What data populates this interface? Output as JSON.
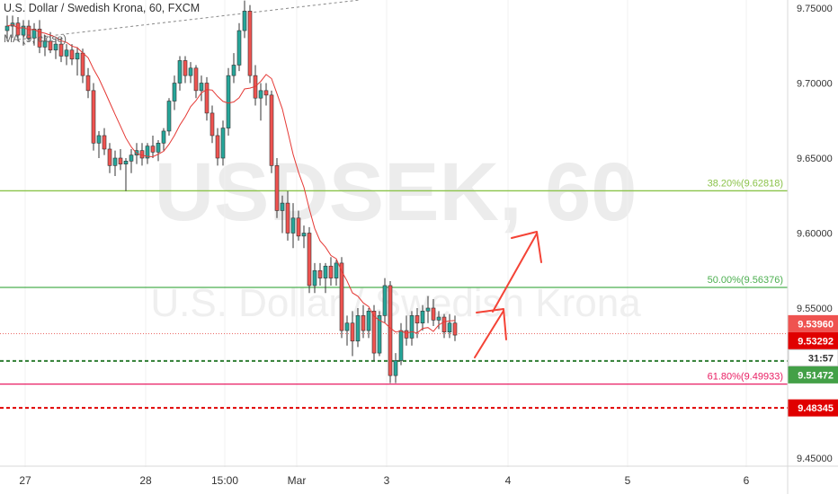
{
  "header": {
    "symbol_title": "U.S. Dollar / Swedish Krona, 60, FXCM",
    "indicator_label": "MA (9, close)"
  },
  "watermark": {
    "symbol": "USDSEK, 60",
    "description": "U.S. Dollar / Swedish Krona"
  },
  "colors": {
    "up_candle": "#26a69a",
    "down_candle": "#ef5350",
    "ma_line": "#e53935",
    "fib_38": "#8bc34a",
    "fib_50": "#4caf50",
    "fib_61": "#e91e63",
    "green_dash": "#2e7d32",
    "red_dash": "#e00000",
    "price_line": "#e53935",
    "arrow": "#f44336",
    "trendline": "#888888",
    "axis_text": "#333333"
  },
  "price_axis": {
    "labels": [
      "9.75000",
      "9.70000",
      "9.65000",
      "9.60000",
      "9.55000",
      "9.45000"
    ]
  },
  "time_axis": {
    "labels": [
      "27",
      "28",
      "15:00",
      "Mar",
      "3",
      "4",
      "5",
      "6"
    ]
  },
  "fib_levels": [
    {
      "label": "38.20%(9.62818)",
      "price": 9.62818,
      "color_key": "fib_38"
    },
    {
      "label": "50.00%(9.56376)",
      "price": 9.56376,
      "color_key": "fib_50"
    },
    {
      "label": "61.80%(9.49933)",
      "price": 9.49933,
      "color_key": "fib_61"
    }
  ],
  "price_badges": [
    {
      "text": "9.53960",
      "price": 9.5396,
      "bg": "#ef5350",
      "fg": "#ffffff"
    },
    {
      "text": "9.53292",
      "price": 9.53292,
      "bg": "#e00000",
      "fg": "#ffffff"
    },
    {
      "text": "31:57",
      "price": 9.5205,
      "bg": "#ffffff",
      "fg": "#333333"
    },
    {
      "text": "9.51472",
      "price": 9.51472,
      "bg": "#43a047",
      "fg": "#ffffff"
    },
    {
      "text": "9.48345",
      "price": 9.48345,
      "bg": "#e00000",
      "fg": "#ffffff"
    }
  ],
  "horizontal_lines": {
    "green_dashed": 9.51472,
    "red_dashed": 9.48345,
    "current_price": 9.53292
  },
  "chart_data": {
    "type": "candlestick",
    "symbol": "USDSEK",
    "timeframe": "60",
    "ylim": [
      9.445,
      9.755
    ],
    "ohlc": [
      [
        9.735,
        9.745,
        9.728,
        9.738
      ],
      [
        9.738,
        9.745,
        9.73,
        9.74
      ],
      [
        9.74,
        9.744,
        9.728,
        9.732
      ],
      [
        9.732,
        9.742,
        9.725,
        9.738
      ],
      [
        9.738,
        9.742,
        9.728,
        9.73
      ],
      [
        9.73,
        9.74,
        9.725,
        9.736
      ],
      [
        9.736,
        9.742,
        9.72,
        9.724
      ],
      [
        9.724,
        9.732,
        9.718,
        9.728
      ],
      [
        9.728,
        9.734,
        9.72,
        9.722
      ],
      [
        9.722,
        9.73,
        9.716,
        9.726
      ],
      [
        9.726,
        9.73,
        9.714,
        9.718
      ],
      [
        9.718,
        9.726,
        9.712,
        9.722
      ],
      [
        9.722,
        9.726,
        9.712,
        9.716
      ],
      [
        9.716,
        9.724,
        9.705,
        9.72
      ],
      [
        9.72,
        9.723,
        9.7,
        9.705
      ],
      [
        9.705,
        9.71,
        9.69,
        9.695
      ],
      [
        9.695,
        9.7,
        9.655,
        9.66
      ],
      [
        9.66,
        9.668,
        9.65,
        9.665
      ],
      [
        9.665,
        9.67,
        9.652,
        9.656
      ],
      [
        9.656,
        9.66,
        9.64,
        9.645
      ],
      [
        9.645,
        9.655,
        9.638,
        9.65
      ],
      [
        9.65,
        9.656,
        9.642,
        9.646
      ],
      [
        9.646,
        9.65,
        9.628,
        9.648
      ],
      [
        9.648,
        9.656,
        9.64,
        9.652
      ],
      [
        9.652,
        9.66,
        9.646,
        9.655
      ],
      [
        9.655,
        9.66,
        9.645,
        9.65
      ],
      [
        9.65,
        9.66,
        9.646,
        9.658
      ],
      [
        9.658,
        9.665,
        9.65,
        9.654
      ],
      [
        9.654,
        9.662,
        9.648,
        9.66
      ],
      [
        9.66,
        9.67,
        9.655,
        9.668
      ],
      [
        9.668,
        9.69,
        9.665,
        9.688
      ],
      [
        9.688,
        9.705,
        9.682,
        9.7
      ],
      [
        9.7,
        9.718,
        9.695,
        9.715
      ],
      [
        9.715,
        9.718,
        9.7,
        9.705
      ],
      [
        9.705,
        9.714,
        9.7,
        9.71
      ],
      [
        9.71,
        9.712,
        9.69,
        9.695
      ],
      [
        9.695,
        9.705,
        9.688,
        9.7
      ],
      [
        9.7,
        9.704,
        9.675,
        9.68
      ],
      [
        9.68,
        9.685,
        9.66,
        9.665
      ],
      [
        9.665,
        9.67,
        9.645,
        9.65
      ],
      [
        9.65,
        9.675,
        9.645,
        9.67
      ],
      [
        9.67,
        9.71,
        9.665,
        9.705
      ],
      [
        9.705,
        9.72,
        9.7,
        9.712
      ],
      [
        9.712,
        9.74,
        9.708,
        9.735
      ],
      [
        9.735,
        9.755,
        9.73,
        9.748
      ],
      [
        9.748,
        9.752,
        9.7,
        9.705
      ],
      [
        9.705,
        9.712,
        9.685,
        9.69
      ],
      [
        9.69,
        9.7,
        9.675,
        9.695
      ],
      [
        9.695,
        9.7,
        9.685,
        9.692
      ],
      [
        9.692,
        9.695,
        9.64,
        9.645
      ],
      [
        9.645,
        9.65,
        9.61,
        9.615
      ],
      [
        9.615,
        9.625,
        9.6,
        9.62
      ],
      [
        9.62,
        9.628,
        9.595,
        9.6
      ],
      [
        9.6,
        9.62,
        9.59,
        9.61
      ],
      [
        9.61,
        9.615,
        9.595,
        9.598
      ],
      [
        9.598,
        9.605,
        9.59,
        9.6
      ],
      [
        9.6,
        9.604,
        9.56,
        9.565
      ],
      [
        9.565,
        9.58,
        9.56,
        9.575
      ],
      [
        9.575,
        9.58,
        9.565,
        9.57
      ],
      [
        9.57,
        9.58,
        9.56,
        9.578
      ],
      [
        9.578,
        9.584,
        9.565,
        9.57
      ],
      [
        9.57,
        9.582,
        9.565,
        9.58
      ],
      [
        9.58,
        9.584,
        9.53,
        9.535
      ],
      [
        9.535,
        9.545,
        9.525,
        9.54
      ],
      [
        9.54,
        9.548,
        9.518,
        9.528
      ],
      [
        9.528,
        9.55,
        9.524,
        9.545
      ],
      [
        9.545,
        9.552,
        9.53,
        9.535
      ],
      [
        9.535,
        9.55,
        9.53,
        9.548
      ],
      [
        9.548,
        9.552,
        9.515,
        9.52
      ],
      [
        9.52,
        9.548,
        9.518,
        9.545
      ],
      [
        9.545,
        9.57,
        9.54,
        9.565
      ],
      [
        9.565,
        9.568,
        9.5,
        9.505
      ],
      [
        9.505,
        9.52,
        9.5,
        9.515
      ],
      [
        9.515,
        9.54,
        9.512,
        9.535
      ],
      [
        9.535,
        9.545,
        9.525,
        9.53
      ],
      [
        9.53,
        9.548,
        9.525,
        9.545
      ],
      [
        9.545,
        9.55,
        9.53,
        9.54
      ],
      [
        9.54,
        9.552,
        9.535,
        9.548
      ],
      [
        9.548,
        9.558,
        9.54,
        9.55
      ],
      [
        9.55,
        9.556,
        9.538,
        9.542
      ],
      [
        9.542,
        9.548,
        9.536,
        9.544
      ],
      [
        9.544,
        9.546,
        9.53,
        9.534
      ],
      [
        9.534,
        9.546,
        9.53,
        9.54
      ],
      [
        9.54,
        9.545,
        9.528,
        9.532
      ]
    ]
  }
}
